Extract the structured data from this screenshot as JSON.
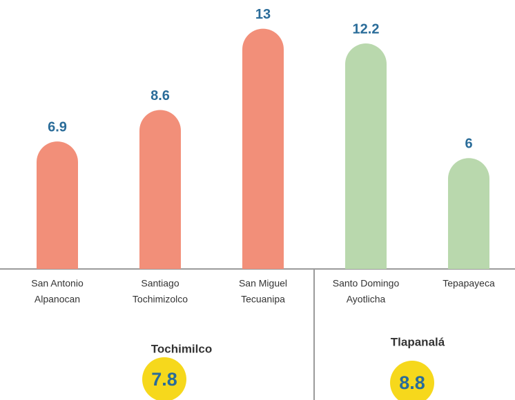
{
  "chart_data": {
    "type": "bar",
    "groups": [
      {
        "name": "Tochimilco",
        "value": 7.8,
        "color": "#f28f79",
        "categories": [
          [
            "San Antonio",
            "Alpanocan"
          ],
          [
            "Santiago",
            "Tochimizolco"
          ],
          [
            "San Miguel",
            "Tecuanipa"
          ]
        ],
        "values": [
          6.9,
          8.6,
          13
        ]
      },
      {
        "name": "Tlapanalá",
        "value": 8.8,
        "color": "#b9d8ad",
        "categories": [
          [
            "Santo Domingo",
            "Ayotlicha"
          ],
          [
            "Tepapayeca"
          ]
        ],
        "values": [
          12.2,
          6
        ]
      }
    ]
  }
}
